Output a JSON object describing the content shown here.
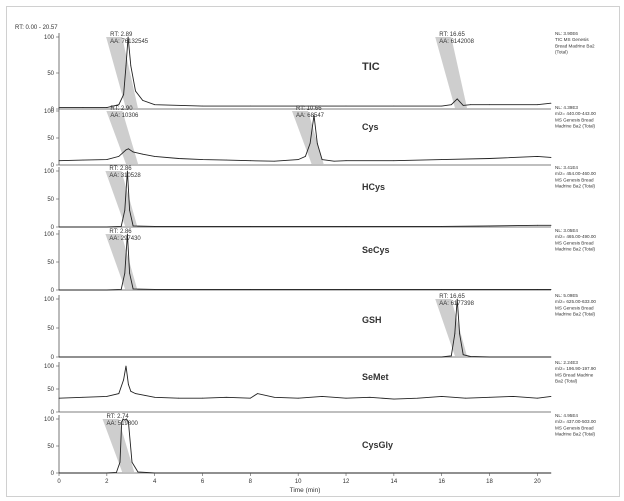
{
  "range_label": "RT: 0.00 - 20.57",
  "x_axis": {
    "label": "Time (min)",
    "ticks": [
      0,
      2,
      4,
      6,
      8,
      10,
      12,
      14,
      16,
      18,
      20
    ],
    "min": 0,
    "max": 20.57
  },
  "chart_data": [
    {
      "type": "line",
      "name": "TIC",
      "ylim": [
        0,
        100
      ],
      "yticks": [
        0,
        50,
        100
      ],
      "annotations": [
        {
          "rt": "RT: 2.89",
          "aa": "AA: 76132545",
          "x": 2.89
        },
        {
          "rt": "RT: 16.65",
          "aa": "AA: 6142008",
          "x": 16.65
        }
      ],
      "info": [
        "NL: 3.90E6",
        "TIC MS Genesis",
        "Bread Madrine Ba2",
        "(Total)"
      ],
      "x": [
        0,
        1,
        2,
        2.5,
        2.7,
        2.8,
        2.89,
        3.0,
        3.2,
        3.5,
        4,
        6,
        8,
        10,
        12,
        14,
        16,
        16.4,
        16.65,
        16.9,
        17.2,
        18,
        20,
        20.57
      ],
      "y": [
        2,
        2,
        2,
        6,
        20,
        60,
        100,
        60,
        25,
        12,
        6,
        4,
        4,
        4,
        4,
        4,
        4,
        6,
        14,
        5,
        6,
        6,
        6,
        8
      ]
    },
    {
      "type": "line",
      "name": "Cys",
      "ylim": [
        0,
        100
      ],
      "yticks": [
        0,
        50,
        100
      ],
      "annotations": [
        {
          "rt": "RT: 2.90",
          "aa": "AA: 10306",
          "x": 2.9
        },
        {
          "rt": "RT: 10.66",
          "aa": "AA: 68547",
          "x": 10.66
        }
      ],
      "info": [
        "NL: 4.39E3",
        "m/z= 440.00-443.00",
        "MS Genesis Bread",
        "Madrine Ba2 (Total)"
      ],
      "x": [
        0,
        1,
        2,
        2.5,
        2.8,
        2.9,
        3.1,
        3.5,
        4,
        5,
        6,
        7,
        8,
        9,
        10,
        10.3,
        10.5,
        10.66,
        10.8,
        11,
        11.5,
        12,
        14,
        16,
        18,
        20,
        20.57
      ],
      "y": [
        8,
        9,
        10,
        16,
        28,
        30,
        24,
        20,
        16,
        12,
        10,
        9,
        8,
        7,
        10,
        16,
        40,
        92,
        40,
        10,
        7,
        8,
        8,
        10,
        12,
        16,
        14
      ]
    },
    {
      "type": "line",
      "name": "HCys",
      "ylim": [
        0,
        100
      ],
      "yticks": [
        0,
        50,
        100
      ],
      "annotations": [
        {
          "rt": "RT: 2.86",
          "aa": "AA: 310528",
          "x": 2.86
        }
      ],
      "info": [
        "NL: 3.41E4",
        "m/z= 454.00-460.00",
        "MS Genesis Bread",
        "Madrine Ba2 (Total)"
      ],
      "x": [
        0,
        2,
        2.6,
        2.75,
        2.86,
        2.95,
        3.1,
        4,
        8,
        12,
        16,
        18,
        20,
        20.57
      ],
      "y": [
        0,
        0,
        1,
        30,
        100,
        30,
        2,
        1,
        1,
        1,
        1,
        2,
        3,
        3
      ]
    },
    {
      "type": "line",
      "name": "SeCys",
      "ylim": [
        0,
        100
      ],
      "yticks": [
        0,
        50,
        100
      ],
      "annotations": [
        {
          "rt": "RT: 2.86",
          "aa": "AA: 297430",
          "x": 2.86
        }
      ],
      "info": [
        "NL: 3.05E4",
        "m/z= 465.00-490.00",
        "MS Genesis Bread",
        "Madrine Ba2 (Total)"
      ],
      "x": [
        0,
        2,
        2.6,
        2.75,
        2.86,
        2.95,
        3.1,
        4,
        8,
        12,
        16,
        20,
        20.57
      ],
      "y": [
        0,
        0,
        1,
        30,
        100,
        30,
        2,
        1,
        1,
        1,
        1,
        1,
        1
      ]
    },
    {
      "type": "line",
      "name": "GSH",
      "ylim": [
        0,
        100
      ],
      "yticks": [
        0,
        50,
        100
      ],
      "annotations": [
        {
          "rt": "RT: 16.65",
          "aa": "AA: 6177398",
          "x": 16.65
        }
      ],
      "info": [
        "NL: 5.09E5",
        "m/z= 625.00-633.00",
        "MS Genesis Bread",
        "Madrine Ba2 (Total)"
      ],
      "x": [
        0,
        4,
        8,
        12,
        16,
        16.4,
        16.55,
        16.65,
        16.75,
        16.9,
        17.2,
        18,
        20,
        20.57
      ],
      "y": [
        0,
        0,
        0,
        0,
        0,
        2,
        40,
        100,
        40,
        4,
        1,
        0,
        0,
        0
      ]
    },
    {
      "type": "line",
      "name": "SeMet",
      "ylim": [
        0,
        100
      ],
      "yticks": [
        0,
        50,
        100
      ],
      "annotations": [],
      "info": [
        "NL: 2.24E3",
        "m/z= 196.90-197.90",
        "MS Bread Madrine",
        "Ba2 (Total)"
      ],
      "x": [
        0,
        1,
        2,
        2.5,
        2.7,
        2.8,
        2.9,
        3.0,
        3.2,
        3.6,
        4,
        5,
        6,
        7,
        8,
        8.3,
        9,
        10,
        11,
        12,
        13,
        14,
        15,
        16,
        17,
        18,
        19,
        20,
        20.57
      ],
      "y": [
        30,
        32,
        34,
        40,
        70,
        100,
        60,
        45,
        40,
        36,
        32,
        30,
        30,
        32,
        30,
        40,
        32,
        30,
        34,
        30,
        32,
        28,
        30,
        34,
        30,
        32,
        34,
        30,
        34
      ]
    },
    {
      "type": "line",
      "name": "CysGly",
      "ylim": [
        0,
        100
      ],
      "yticks": [
        0,
        50,
        100
      ],
      "annotations": [
        {
          "rt": "RT: 2.74",
          "aa": "AA: 519800",
          "x": 2.74
        }
      ],
      "info": [
        "NL: 4.95E4",
        "m/z= 437.00-503.00",
        "MS Genesis Bread",
        "Madrine Ba2 (Total)"
      ],
      "x": [
        0,
        2,
        2.4,
        2.55,
        2.62,
        2.68,
        2.74,
        2.82,
        2.9,
        3.05,
        3.3,
        4,
        8,
        12,
        16,
        20,
        20.57
      ],
      "y": [
        0,
        0,
        1,
        20,
        95,
        100,
        98,
        100,
        95,
        20,
        2,
        0,
        0,
        0,
        0,
        0,
        0
      ]
    }
  ]
}
